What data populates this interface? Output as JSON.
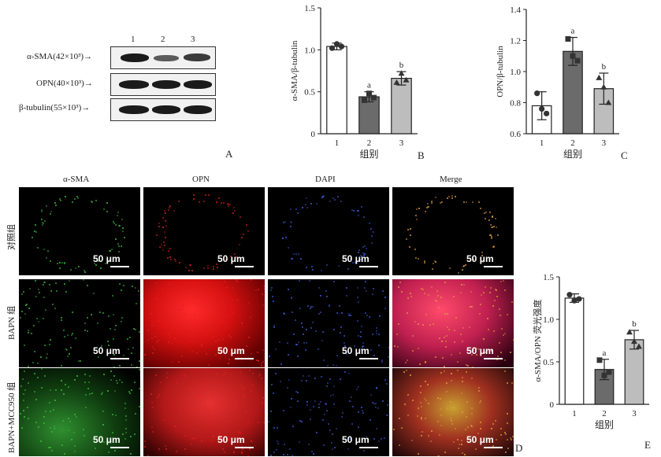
{
  "blot": {
    "lanes": [
      "1",
      "2",
      "3"
    ],
    "rows": [
      {
        "label": "α-SMA(42×10³)→",
        "intensities": [
          0.95,
          0.55,
          0.8
        ]
      },
      {
        "label": "OPN(40×10³)→",
        "intensities": [
          0.85,
          0.85,
          0.85
        ]
      },
      {
        "label": "β-tubulin(55×10³)→",
        "intensities": [
          0.9,
          0.9,
          0.9
        ]
      }
    ],
    "panel": "A"
  },
  "chart_data": [
    {
      "type": "bar",
      "panel": "B",
      "categories": [
        "1",
        "2",
        "3"
      ],
      "values": [
        1.04,
        0.44,
        0.66
      ],
      "errors": [
        0.04,
        0.06,
        0.08
      ],
      "points": [
        [
          1.02,
          1.07,
          1.04
        ],
        [
          0.4,
          0.48,
          0.43
        ],
        [
          0.61,
          0.72,
          0.64
        ]
      ],
      "significance": [
        "",
        "a",
        "b"
      ],
      "xlabel": "组别",
      "ylabel": "α-SMA/β-tubulin",
      "ylim": [
        0,
        1.5
      ],
      "yticks": [
        "0",
        "0.5",
        "1.0",
        "1.5"
      ],
      "colors": [
        "#ffffff",
        "#6b6b6b",
        "#bdbdbd"
      ]
    },
    {
      "type": "bar",
      "panel": "C",
      "categories": [
        "1",
        "2",
        "3"
      ],
      "values": [
        0.78,
        1.13,
        0.89
      ],
      "errors": [
        0.09,
        0.09,
        0.1
      ],
      "points": [
        [
          0.86,
          0.76,
          0.73
        ],
        [
          1.21,
          1.1,
          1.07
        ],
        [
          0.96,
          0.9,
          0.8
        ]
      ],
      "significance": [
        "",
        "a",
        "b"
      ],
      "xlabel": "组别",
      "ylabel": "OPN/β-tubulin",
      "ylim": [
        0.6,
        1.4
      ],
      "yticks": [
        "0.6",
        "0.8",
        "1.0",
        "1.2",
        "1.4"
      ],
      "colors": [
        "#ffffff",
        "#6b6b6b",
        "#bdbdbd"
      ]
    },
    {
      "type": "bar",
      "panel": "E",
      "categories": [
        "1",
        "2",
        "3"
      ],
      "values": [
        1.25,
        0.41,
        0.76
      ],
      "errors": [
        0.05,
        0.12,
        0.11
      ],
      "points": [
        [
          1.29,
          1.22,
          1.24
        ],
        [
          0.52,
          0.34,
          0.38
        ],
        [
          0.85,
          0.74,
          0.68
        ]
      ],
      "significance": [
        "",
        "a",
        "b"
      ],
      "xlabel": "组别",
      "ylabel": "α-SMA/OPN 荧光强度",
      "ylim": [
        0,
        1.5
      ],
      "yticks": [
        "0",
        "0.5",
        "1.0",
        "1.5"
      ],
      "colors": [
        "#ffffff",
        "#6b6b6b",
        "#bdbdbd"
      ]
    }
  ],
  "micrograph": {
    "columns": [
      "α-SMA",
      "OPN",
      "DAPI",
      "Merge"
    ],
    "rows": [
      "对照组",
      "BAPN 组",
      "BAPN+MCC950 组"
    ],
    "scale_label": "50 μm",
    "panel": "D",
    "colors": {
      "green": "#3fbf3f",
      "red": "#e02020",
      "blue": "#3a5bd9"
    }
  }
}
